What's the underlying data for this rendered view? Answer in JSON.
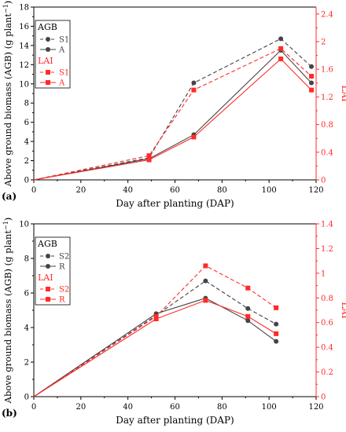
{
  "colors": {
    "agb": "#444444",
    "lai": "#ff2b2b",
    "axis": "#000000"
  },
  "chart_data": [
    {
      "type": "line",
      "panel_label": "(a)",
      "xlabel": "Day after planting (DAP)",
      "ylabel_main": "Above ground biomass (AGB) (g plant",
      "ylabel_sup": "−1",
      "ylabel_close": ")",
      "y2label": "LAI",
      "xlim": [
        0,
        120
      ],
      "ylim": [
        0,
        18
      ],
      "y2lim": [
        0,
        2.5
      ],
      "xticks": [
        "0",
        "20",
        "40",
        "60",
        "80",
        "100",
        "120"
      ],
      "yticks": [
        "0",
        "2",
        "4",
        "6",
        "8",
        "10",
        "12",
        "14",
        "16",
        "18"
      ],
      "y2ticks": [
        "0",
        "0.4",
        "0.8",
        "1.2",
        "1.6",
        "2",
        "2.4"
      ],
      "grid": false,
      "legend": {
        "placement": "top-left",
        "agb_title": "AGB",
        "lai_title": "LAI",
        "agb_items": [
          "S1",
          "A"
        ],
        "lai_items": [
          "S1",
          "A"
        ]
      },
      "x": [
        0,
        49,
        68,
        105,
        118
      ],
      "series": [
        {
          "name": "S1",
          "group": "AGB",
          "axis": "left",
          "style": "dashed",
          "marker": "circle",
          "values": [
            0,
            2.3,
            10.1,
            14.7,
            11.8
          ]
        },
        {
          "name": "A",
          "group": "AGB",
          "axis": "left",
          "style": "solid",
          "marker": "circle",
          "values": [
            0,
            2.2,
            4.7,
            13.5,
            10.1
          ]
        },
        {
          "name": "S1",
          "group": "LAI",
          "axis": "right",
          "style": "dashed",
          "marker": "square",
          "values": [
            0,
            0.35,
            1.3,
            1.9,
            1.5
          ]
        },
        {
          "name": "A",
          "group": "LAI",
          "axis": "right",
          "style": "solid",
          "marker": "square",
          "values": [
            0,
            0.29,
            0.62,
            1.75,
            1.3
          ]
        }
      ]
    },
    {
      "type": "line",
      "panel_label": "(b)",
      "xlabel": "Day after planting (DAP)",
      "ylabel_main": "Above ground biomass (AGB) (g plant",
      "ylabel_sup": "−1",
      "ylabel_close": ")",
      "y2label": "LAI",
      "xlim": [
        0,
        120
      ],
      "ylim": [
        0,
        10
      ],
      "y2lim": [
        0,
        1.4
      ],
      "xticks": [
        "0",
        "20",
        "40",
        "60",
        "80",
        "100",
        "120"
      ],
      "yticks": [
        "0",
        "2",
        "4",
        "6",
        "8",
        "10"
      ],
      "y2ticks": [
        "0",
        "0.2",
        "0.4",
        "0.6",
        "0.8",
        "1",
        "1.2",
        "1.4"
      ],
      "grid": false,
      "legend": {
        "placement": "top-left",
        "agb_title": "AGB",
        "lai_title": "LAI",
        "agb_items": [
          "S2",
          "R"
        ],
        "lai_items": [
          "S2",
          "R"
        ]
      },
      "x": [
        0,
        52,
        73,
        91,
        103
      ],
      "series": [
        {
          "name": "S2",
          "group": "AGB",
          "axis": "left",
          "style": "dashed",
          "marker": "circle",
          "values": [
            0,
            4.7,
            6.7,
            5.1,
            4.2
          ]
        },
        {
          "name": "R",
          "group": "AGB",
          "axis": "left",
          "style": "solid",
          "marker": "circle",
          "values": [
            0,
            4.8,
            5.7,
            4.4,
            3.2
          ]
        },
        {
          "name": "S2",
          "group": "LAI",
          "axis": "right",
          "style": "dashed",
          "marker": "square",
          "values": [
            0,
            0.65,
            1.06,
            0.88,
            0.72
          ]
        },
        {
          "name": "R",
          "group": "LAI",
          "axis": "right",
          "style": "solid",
          "marker": "square",
          "values": [
            0,
            0.63,
            0.78,
            0.65,
            0.51
          ]
        }
      ]
    }
  ]
}
